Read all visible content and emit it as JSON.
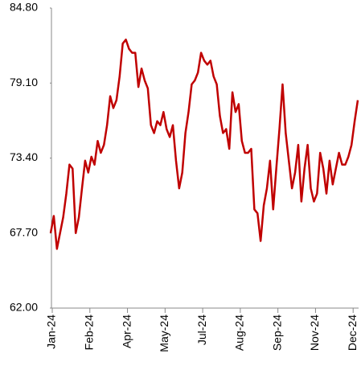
{
  "chart_data": {
    "type": "line",
    "categories": [
      "Jan-24",
      null,
      null,
      null,
      null,
      null,
      null,
      null,
      null,
      null,
      null,
      null,
      "Feb-24",
      null,
      null,
      null,
      null,
      null,
      null,
      null,
      null,
      null,
      null,
      null,
      "Apr-24",
      null,
      null,
      null,
      null,
      null,
      null,
      null,
      null,
      null,
      null,
      null,
      "May-24",
      null,
      null,
      null,
      null,
      null,
      null,
      null,
      null,
      null,
      null,
      null,
      "Jul-24",
      null,
      null,
      null,
      null,
      null,
      null,
      null,
      null,
      null,
      null,
      null,
      "Aug-24",
      null,
      null,
      null,
      null,
      null,
      null,
      null,
      null,
      null,
      null,
      null,
      "Sep-24",
      null,
      null,
      null,
      null,
      null,
      null,
      null,
      null,
      null,
      null,
      null,
      "Nov-24",
      null,
      null,
      null,
      null,
      null,
      null,
      null,
      null,
      null,
      null,
      null,
      "Dec-24",
      null,
      null
    ],
    "series": [
      {
        "color": "#c00000",
        "values": [
          67.7,
          69.0,
          66.5,
          67.7,
          68.9,
          70.7,
          72.9,
          72.6,
          67.7,
          68.9,
          71.1,
          73.2,
          72.3,
          73.5,
          72.9,
          74.7,
          73.8,
          74.4,
          75.9,
          78.1,
          77.2,
          77.8,
          79.6,
          82.1,
          82.4,
          81.7,
          81.4,
          81.4,
          78.8,
          80.2,
          79.3,
          78.7,
          75.9,
          75.3,
          76.2,
          75.9,
          76.9,
          75.6,
          75.0,
          75.9,
          73.2,
          71.1,
          72.3,
          75.3,
          76.9,
          79.0,
          79.3,
          79.9,
          81.4,
          80.8,
          80.5,
          80.8,
          79.6,
          79.0,
          76.6,
          75.3,
          75.6,
          74.1,
          78.4,
          76.9,
          77.5,
          74.7,
          73.8,
          73.8,
          74.1,
          69.5,
          69.2,
          67.1,
          69.8,
          71.1,
          73.2,
          69.5,
          72.6,
          75.6,
          79.0,
          75.3,
          73.2,
          71.1,
          72.3,
          74.4,
          70.1,
          72.6,
          74.4,
          71.1,
          70.1,
          70.7,
          73.8,
          72.6,
          70.7,
          73.2,
          71.4,
          72.6,
          73.8,
          72.9,
          72.9,
          73.5,
          74.4,
          76.2,
          77.8
        ]
      }
    ],
    "ylim": [
      62,
      84.8
    ],
    "yticks": [
      {
        "value": 62,
        "label": "62.00"
      },
      {
        "value": 67.7,
        "label": "67.70"
      },
      {
        "value": 73.4,
        "label": "73.40"
      },
      {
        "value": 79.1,
        "label": "79.10"
      },
      {
        "value": 84.8,
        "label": "84.80"
      }
    ]
  }
}
